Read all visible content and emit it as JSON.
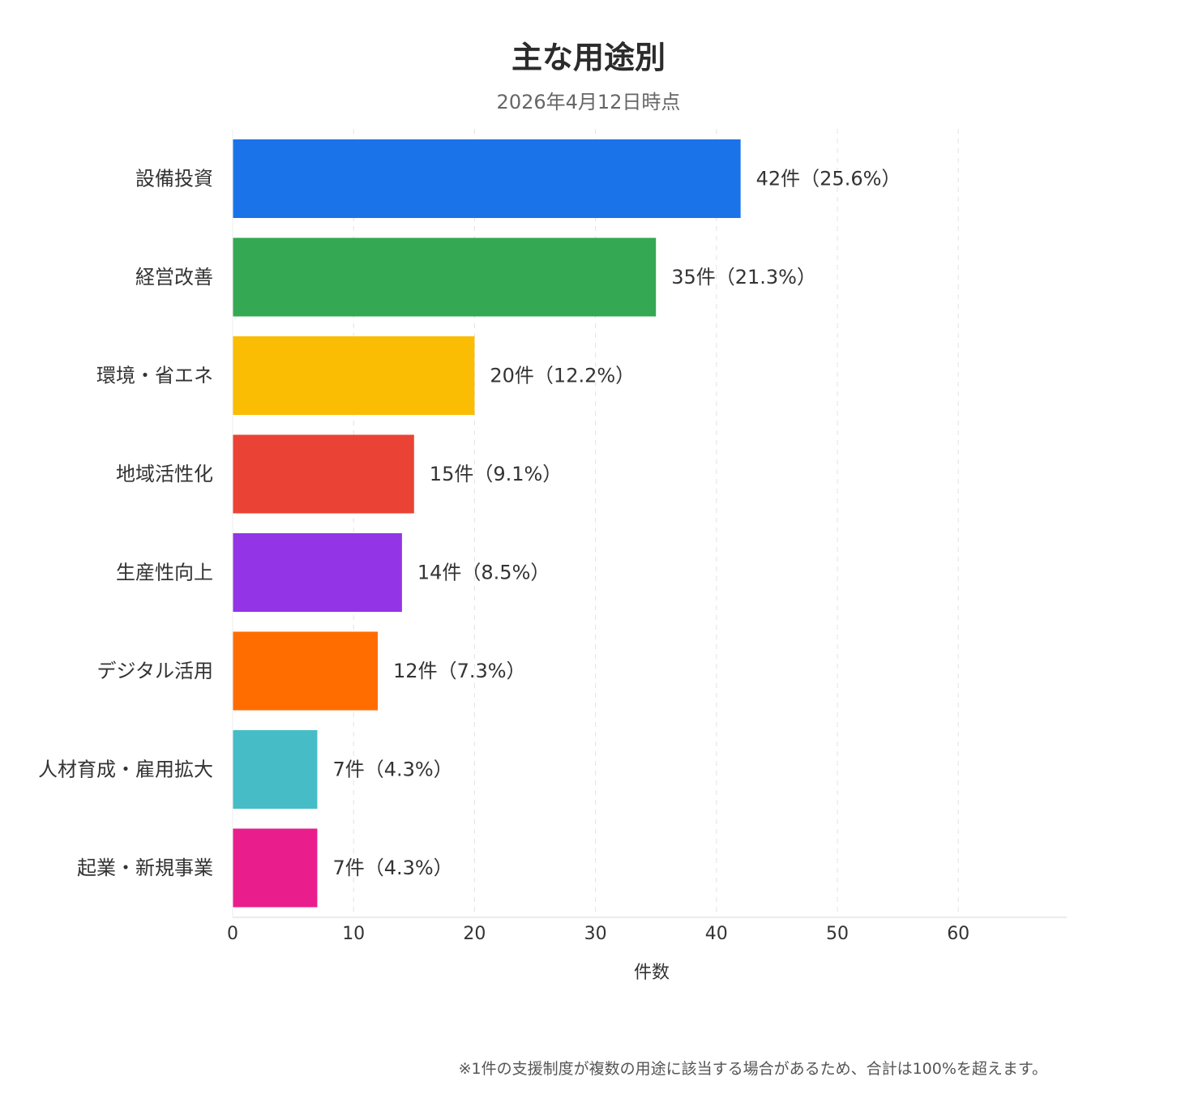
{
  "chart_data": {
    "type": "bar",
    "orientation": "horizontal",
    "title": "主な用途別",
    "subtitle": "2026年4月12日時点",
    "xlabel": "件数",
    "ylabel": "",
    "xlim": [
      0,
      69
    ],
    "xticks": [
      0,
      10,
      20,
      30,
      40,
      50,
      60
    ],
    "grid": "vertical-dashed",
    "legend": "none",
    "categories": [
      "設備投資",
      "経営改善",
      "環境・省エネ",
      "地域活性化",
      "生産性向上",
      "デジタル活用",
      "人材育成・雇用拡大",
      "起業・新規事業"
    ],
    "values": [
      42,
      35,
      20,
      15,
      14,
      12,
      7,
      7
    ],
    "data_labels": [
      "42件（25.6%）",
      "35件（21.3%）",
      "20件（12.2%）",
      "15件（9.1%）",
      "14件（8.5%）",
      "12件（7.3%）",
      "7件（4.3%）",
      "7件（4.3%）"
    ],
    "colors": [
      "#1a73e8",
      "#34a853",
      "#fbbc04",
      "#ea4335",
      "#9334e6",
      "#ff6d00",
      "#46bdc6",
      "#e91e8c"
    ]
  },
  "footnote": "※1件の支援制度が複数の用途に該当する場合があるため、合計は100%を超えます。"
}
